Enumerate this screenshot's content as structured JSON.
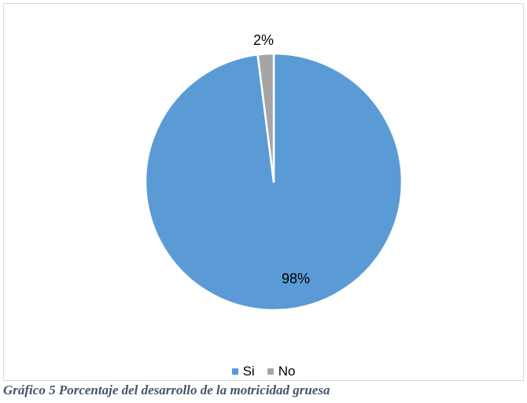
{
  "chart_data": {
    "type": "pie",
    "categories": [
      "Si",
      "No"
    ],
    "values": [
      98,
      2
    ],
    "data_labels": [
      "98%",
      "2%"
    ],
    "colors": [
      "#5b9bd5",
      "#a5a5a5"
    ],
    "start_angle_deg": 0,
    "direction": "clockwise",
    "legend_position": "bottom",
    "title": ""
  },
  "caption": "Gráfico 5 Porcentaje del desarrollo de la motricidad gruesa"
}
